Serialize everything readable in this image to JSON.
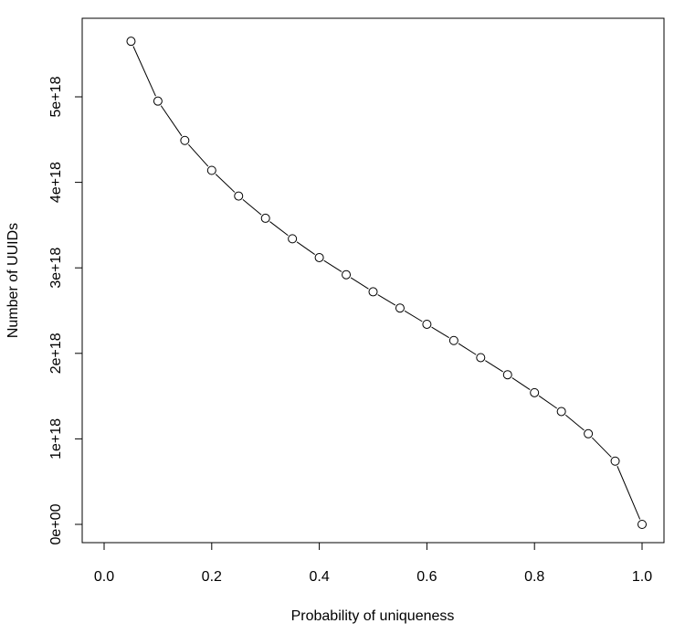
{
  "chart_data": {
    "type": "line",
    "title": "",
    "xlabel": "Probability of uniqueness",
    "ylabel": "Number of UUIDs",
    "xlim": [
      0.0,
      1.0
    ],
    "ylim": [
      0,
      5.65e+18
    ],
    "grid": false,
    "legend": "none",
    "x_ticks": [
      0.0,
      0.2,
      0.4,
      0.6,
      0.8,
      1.0
    ],
    "x_tick_labels": [
      "0.0",
      "0.2",
      "0.4",
      "0.6",
      "0.8",
      "1.0"
    ],
    "y_ticks": [
      0,
      1e+18,
      2e+18,
      3e+18,
      4e+18,
      5e+18
    ],
    "y_tick_labels": [
      "0e+00",
      "1e+18",
      "2e+18",
      "3e+18",
      "4e+18",
      "5e+18"
    ],
    "x": [
      0.05,
      0.1,
      0.15,
      0.2,
      0.25,
      0.3,
      0.35,
      0.4,
      0.45,
      0.5,
      0.55,
      0.6,
      0.65,
      0.7,
      0.75,
      0.8,
      0.85,
      0.9,
      0.95,
      1.0
    ],
    "y": [
      5.65e+18,
      4.95e+18,
      4.49e+18,
      4.14e+18,
      3.84e+18,
      3.58e+18,
      3.34e+18,
      3.12e+18,
      2.92e+18,
      2.72e+18,
      2.53e+18,
      2.34e+18,
      2.15e+18,
      1.95e+18,
      1.75e+18,
      1.54e+18,
      1.32e+18,
      1.06e+18,
      7.4e+17,
      0.0
    ]
  }
}
